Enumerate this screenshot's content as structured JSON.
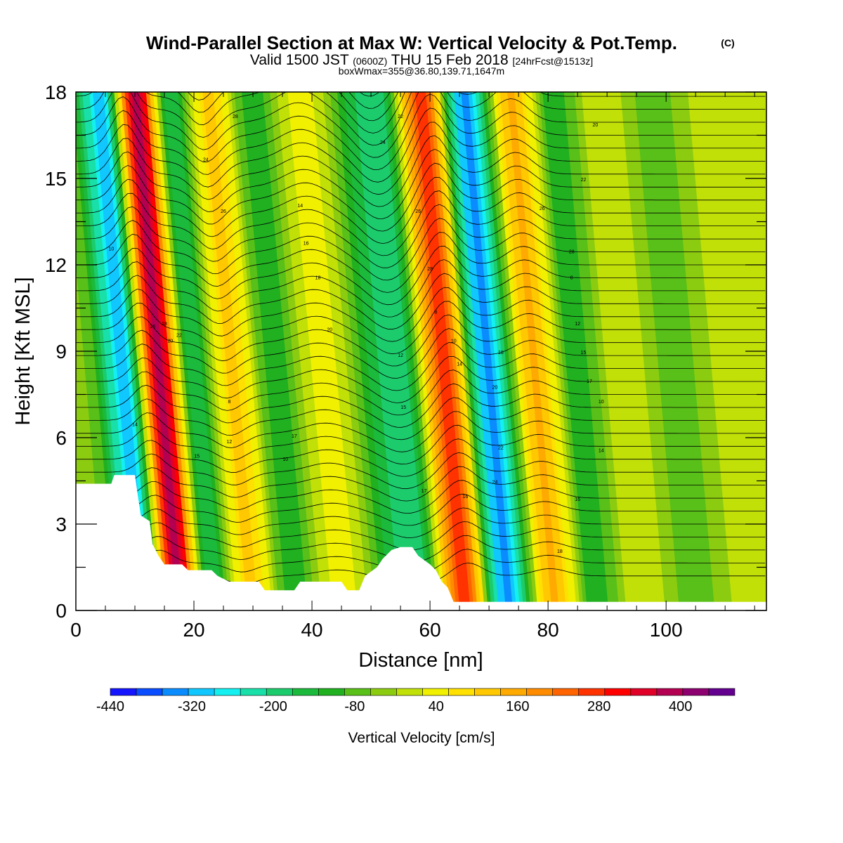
{
  "chart_data": {
    "type": "heatmap",
    "title": "Wind-Parallel Section at Max W: Vertical Velocity & Pot.Temp.",
    "title_mark": "(C)",
    "subtitle_parts": {
      "valid": "Valid 1500 JST",
      "utc": "(0600Z)",
      "date": "THU 15 Feb 2018",
      "fcst": "[24hrFcst@1513z]"
    },
    "subtitle2": "boxWmax=355@36.80,139.71,1647m",
    "xlabel": "Distance [nm]",
    "ylabel": "Height [Kft MSL]",
    "xlim": [
      0,
      117
    ],
    "ylim": [
      0,
      18
    ],
    "xticks": [
      0,
      20,
      40,
      60,
      80,
      100
    ],
    "yticks": [
      0,
      3,
      6,
      9,
      12,
      15,
      18
    ],
    "colorbar": {
      "label": "Vertical Velocity [cm/s]",
      "tick_labels": [
        "-440",
        "-320",
        "-200",
        "-80",
        "40",
        "160",
        "280",
        "400"
      ],
      "tick_values": [
        -440,
        -320,
        -200,
        -80,
        40,
        160,
        280,
        400
      ],
      "range": [
        -440,
        480
      ],
      "step": 40,
      "colors": [
        "#1414ff",
        "#0a4cff",
        "#0a8cff",
        "#10c8ff",
        "#14f0f0",
        "#18e0a8",
        "#1ccc6c",
        "#1cba3c",
        "#20b020",
        "#58c018",
        "#8ccc10",
        "#c0e008",
        "#f0f000",
        "#ffe000",
        "#ffc800",
        "#ffaa00",
        "#ff8c00",
        "#ff6400",
        "#ff3200",
        "#ff0000",
        "#e00028",
        "#b40050",
        "#8c0070",
        "#640090"
      ]
    },
    "velocity_bands": [
      {
        "x": 4,
        "v": -40
      },
      {
        "x": 10.5,
        "v": -300
      },
      {
        "x": 16.5,
        "v": 420
      },
      {
        "x": 22,
        "v": -150
      },
      {
        "x": 29,
        "v": 130
      },
      {
        "x": 36,
        "v": -110
      },
      {
        "x": 44,
        "v": 60
      },
      {
        "x": 57,
        "v": -200
      },
      {
        "x": 65,
        "v": 300
      },
      {
        "x": 72,
        "v": -330
      },
      {
        "x": 80,
        "v": 170
      },
      {
        "x": 87,
        "v": -100
      },
      {
        "x": 95,
        "v": 40
      },
      {
        "x": 104,
        "v": -60
      },
      {
        "x": 113,
        "v": 20
      }
    ],
    "terrain": [
      [
        0,
        4.4
      ],
      [
        6,
        4.4
      ],
      [
        6.5,
        4.7
      ],
      [
        10,
        4.7
      ],
      [
        10.5,
        4.0
      ],
      [
        11,
        3.3
      ],
      [
        12.5,
        3.1
      ],
      [
        13,
        2.3
      ],
      [
        14,
        1.9
      ],
      [
        15,
        1.6
      ],
      [
        18,
        1.6
      ],
      [
        19,
        1.4
      ],
      [
        23,
        1.4
      ],
      [
        24,
        1.2
      ],
      [
        26,
        1.0
      ],
      [
        31,
        1.0
      ],
      [
        32,
        0.7
      ],
      [
        37,
        0.7
      ],
      [
        38,
        1.0
      ],
      [
        45,
        1.0
      ],
      [
        46,
        0.7
      ],
      [
        48,
        0.7
      ],
      [
        49,
        1.2
      ],
      [
        51,
        1.5
      ],
      [
        52,
        1.8
      ],
      [
        53.5,
        2.1
      ],
      [
        55,
        2.2
      ],
      [
        57,
        2.2
      ],
      [
        58,
        1.9
      ],
      [
        60,
        1.6
      ],
      [
        61,
        1.4
      ],
      [
        62,
        1.0
      ],
      [
        63,
        0.8
      ],
      [
        64,
        0.3
      ],
      [
        117,
        0.3
      ]
    ],
    "theta_label_values": [
      "10",
      "14",
      "16",
      "18",
      "20",
      "22",
      "24",
      "26",
      "28",
      "8",
      "12",
      "15",
      "17"
    ]
  }
}
